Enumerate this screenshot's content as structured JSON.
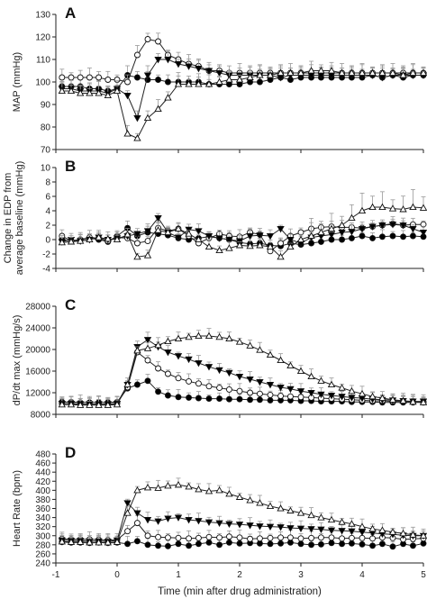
{
  "figure": {
    "x_axis_label": "Time (min after drug administration)",
    "x_ticks": [
      "-1",
      "0",
      "1",
      "2",
      "3",
      "4",
      "5"
    ]
  },
  "series_styles": {
    "filled_circle": {
      "marker": "circle",
      "fill": "#000000"
    },
    "open_circle": {
      "marker": "circle",
      "fill": "#ffffff"
    },
    "filled_triangle_down": {
      "marker": "triangle-down",
      "fill": "#000000"
    },
    "open_triangle_up": {
      "marker": "triangle-up",
      "fill": "#ffffff"
    }
  },
  "chart_data": [
    {
      "type": "line",
      "panel_label": "A",
      "ylabel": "MAP (mmHg)",
      "ylim": [
        70,
        130
      ],
      "yticks": [
        "70",
        "80",
        "90",
        "100",
        "110",
        "120",
        "130"
      ],
      "xlim": [
        -1,
        5
      ],
      "x": [
        -0.9,
        -0.75,
        -0.6,
        -0.45,
        -0.3,
        -0.15,
        0,
        0.17,
        0.33,
        0.5,
        0.67,
        0.83,
        1,
        1.17,
        1.33,
        1.5,
        1.67,
        1.83,
        2,
        2.17,
        2.33,
        2.5,
        2.67,
        2.83,
        3,
        3.17,
        3.33,
        3.5,
        3.67,
        3.83,
        4,
        4.17,
        4.33,
        4.5,
        4.67,
        4.83,
        5
      ],
      "series": [
        {
          "style": "filled_circle",
          "values": [
            98,
            98,
            98,
            97,
            97,
            96,
            97,
            103,
            102,
            101,
            101,
            100,
            100,
            100,
            100,
            99,
            99,
            99,
            99,
            100,
            100,
            101,
            102,
            101,
            102,
            102,
            102,
            102,
            102,
            102,
            102,
            103,
            102,
            103,
            102,
            103,
            103
          ]
        },
        {
          "style": "open_circle",
          "values": [
            102,
            102,
            102,
            102,
            102,
            101,
            101,
            100,
            112,
            119,
            118,
            112,
            110,
            108,
            107,
            105,
            105,
            104,
            104,
            104,
            104,
            104,
            104,
            104,
            104,
            104,
            104,
            104,
            104,
            104,
            104,
            104,
            104,
            104,
            104,
            104,
            104
          ]
        },
        {
          "style": "filled_triangle_down",
          "values": [
            97,
            97,
            96,
            96,
            96,
            95,
            97,
            94,
            84,
            103,
            110,
            110,
            108,
            107,
            106,
            105,
            104,
            103,
            103,
            103,
            103,
            103,
            102,
            103,
            103,
            103,
            103,
            103,
            103,
            103,
            103,
            103,
            102,
            103,
            103,
            103,
            103
          ]
        },
        {
          "style": "open_triangle_up",
          "values": [
            96,
            96,
            95,
            95,
            95,
            94,
            96,
            77,
            75,
            84,
            88,
            93,
            99,
            99,
            99,
            99,
            100,
            101,
            101,
            102,
            103,
            103,
            104,
            104,
            104,
            105,
            105,
            105,
            104,
            104,
            104,
            104,
            104,
            104,
            103,
            104,
            104
          ]
        }
      ]
    },
    {
      "type": "line",
      "panel_label": "B",
      "ylabel": "Change in EDP from average baseline (mmHg)",
      "ylim": [
        -4,
        10
      ],
      "yticks": [
        "-4",
        "-2",
        "0",
        "2",
        "4",
        "6",
        "8",
        "10"
      ],
      "xlim": [
        -1,
        5
      ],
      "x": [
        -0.9,
        -0.75,
        -0.6,
        -0.45,
        -0.3,
        -0.15,
        0,
        0.17,
        0.33,
        0.5,
        0.67,
        0.83,
        1,
        1.17,
        1.33,
        1.5,
        1.67,
        1.83,
        2,
        2.17,
        2.33,
        2.5,
        2.67,
        2.83,
        3,
        3.17,
        3.33,
        3.5,
        3.67,
        3.83,
        4,
        4.17,
        4.33,
        4.5,
        4.67,
        4.83,
        5
      ],
      "series": [
        {
          "style": "filled_circle",
          "values": [
            0,
            -0.2,
            0,
            0.2,
            0,
            -0.3,
            0.5,
            1.6,
            0.5,
            1.0,
            0.8,
            0.6,
            0.2,
            0,
            0.2,
            0.4,
            0.2,
            0,
            -0.4,
            -0.6,
            -0.5,
            -0.8,
            -0.9,
            -0.5,
            -0.7,
            -0.5,
            -0.3,
            0,
            0,
            0.2,
            0.5,
            0.2,
            0.4,
            0.5,
            0.4,
            0.5,
            0.4
          ]
        },
        {
          "style": "open_circle",
          "values": [
            0.5,
            -0.2,
            0,
            0.3,
            0.2,
            -0.2,
            0.3,
            0.2,
            -0.5,
            -0.2,
            1.6,
            1.2,
            1.5,
            0.5,
            -0.5,
            0.2,
            0.8,
            0.5,
            0.4,
            1.0,
            0.7,
            -1.6,
            -0.5,
            0.5,
            1.0,
            1.5,
            1.7,
            1.8,
            1.7,
            1.7,
            1.6,
            1.8,
            2.0,
            2.2,
            2.0,
            2.1,
            2.1
          ]
        },
        {
          "style": "filled_triangle_down",
          "values": [
            -0.3,
            0,
            -0.2,
            0,
            0.3,
            0,
            0.2,
            0.5,
            0.8,
            1.2,
            3.0,
            1.0,
            0.3,
            1.4,
            1.2,
            0.5,
            0.2,
            0,
            -0.2,
            0.5,
            0.6,
            0.5,
            1.5,
            0,
            -0.5,
            0.3,
            0.5,
            0.7,
            1.0,
            1.1,
            1.5,
            1.8,
            2.0,
            2.1,
            2.0,
            1.5,
            1.0
          ]
        },
        {
          "style": "open_triangle_up",
          "values": [
            -0.4,
            -0.3,
            -0.2,
            0,
            0.3,
            0.1,
            0,
            0.7,
            -2.4,
            -2.2,
            1.3,
            1.0,
            1.5,
            0.8,
            0,
            -1.0,
            -1.5,
            -1.2,
            -0.8,
            -0.9,
            -0.8,
            -1.0,
            -2.4,
            -1.0,
            0,
            0.5,
            1.0,
            1.5,
            2.0,
            3.0,
            4.0,
            4.5,
            4.5,
            4.3,
            4.2,
            4.5,
            4.4
          ]
        }
      ]
    },
    {
      "type": "line",
      "panel_label": "C",
      "ylabel": "dP/dt max (mmHg/s)",
      "ylim": [
        8000,
        28000
      ],
      "yticks": [
        "8000",
        "12000",
        "16000",
        "20000",
        "24000",
        "28000"
      ],
      "xlim": [
        -1,
        5
      ],
      "x": [
        -0.9,
        -0.75,
        -0.6,
        -0.45,
        -0.3,
        -0.15,
        0,
        0.17,
        0.33,
        0.5,
        0.67,
        0.83,
        1,
        1.17,
        1.33,
        1.5,
        1.67,
        1.83,
        2,
        2.17,
        2.33,
        2.5,
        2.67,
        2.83,
        3,
        3.17,
        3.33,
        3.5,
        3.67,
        3.83,
        4,
        4.17,
        4.33,
        4.5,
        4.67,
        4.83,
        5
      ],
      "series": [
        {
          "style": "filled_circle",
          "values": [
            10300,
            10300,
            10200,
            10200,
            10200,
            10200,
            10300,
            12800,
            13500,
            14200,
            12200,
            11500,
            11200,
            11100,
            11000,
            10900,
            10900,
            10800,
            10800,
            10700,
            10700,
            10600,
            10600,
            10600,
            10500,
            10500,
            10400,
            10400,
            10400,
            10300,
            10300,
            10300,
            10200,
            10200,
            10200,
            10200,
            10200
          ]
        },
        {
          "style": "open_circle",
          "values": [
            10000,
            10000,
            9900,
            9900,
            9900,
            9900,
            10000,
            13000,
            19500,
            18000,
            16500,
            15500,
            14700,
            14100,
            13700,
            13200,
            12900,
            12600,
            12300,
            12000,
            11800,
            11600,
            11400,
            11300,
            11200,
            11100,
            11000,
            10900,
            10800,
            10700,
            10600,
            10500,
            10500,
            10400,
            10400,
            10300,
            10300
          ]
        },
        {
          "style": "filled_triangle_down",
          "values": [
            10000,
            10000,
            9900,
            9900,
            9900,
            9900,
            10000,
            13500,
            20500,
            21800,
            20500,
            19500,
            18800,
            18200,
            17500,
            16800,
            16200,
            15700,
            15000,
            14500,
            14000,
            13500,
            13000,
            12700,
            12300,
            12000,
            11700,
            11500,
            11300,
            11100,
            11000,
            10800,
            10700,
            10600,
            10500,
            10400,
            10400
          ]
        },
        {
          "style": "open_triangle_up",
          "values": [
            9800,
            9800,
            9700,
            9700,
            9700,
            9700,
            9800,
            13500,
            19800,
            20200,
            20800,
            21500,
            22000,
            22300,
            22500,
            22500,
            22300,
            22000,
            21400,
            20700,
            19900,
            19000,
            18000,
            17000,
            16000,
            15000,
            14200,
            13500,
            12900,
            12300,
            11800,
            11300,
            11000,
            10700,
            10500,
            10300,
            10200
          ]
        }
      ]
    },
    {
      "type": "line",
      "panel_label": "D",
      "ylabel": "Heart Rate (bpm)",
      "ylim": [
        240,
        480
      ],
      "yticks": [
        "240",
        "260",
        "280",
        "300",
        "320",
        "340",
        "360",
        "380",
        "400",
        "420",
        "440",
        "460",
        "480"
      ],
      "xlim": [
        -1,
        5
      ],
      "x": [
        -0.9,
        -0.75,
        -0.6,
        -0.45,
        -0.3,
        -0.15,
        0,
        0.17,
        0.33,
        0.5,
        0.67,
        0.83,
        1,
        1.17,
        1.33,
        1.5,
        1.67,
        1.83,
        2,
        2.17,
        2.33,
        2.5,
        2.67,
        2.83,
        3,
        3.17,
        3.33,
        3.5,
        3.67,
        3.83,
        4,
        4.17,
        4.33,
        4.5,
        4.67,
        4.83,
        5
      ],
      "series": [
        {
          "style": "filled_circle",
          "values": [
            286,
            285,
            285,
            284,
            285,
            284,
            285,
            282,
            288,
            280,
            278,
            277,
            282,
            278,
            282,
            285,
            280,
            285,
            283,
            284,
            283,
            282,
            283,
            285,
            282,
            280,
            281,
            284,
            282,
            283,
            281,
            278,
            282,
            276,
            282,
            278,
            283
          ]
        },
        {
          "style": "open_circle",
          "values": [
            293,
            292,
            292,
            292,
            291,
            290,
            291,
            310,
            328,
            300,
            297,
            296,
            295,
            294,
            295,
            297,
            296,
            298,
            296,
            293,
            294,
            295,
            296,
            296,
            294,
            295,
            296,
            296,
            294,
            295,
            295,
            294,
            296,
            295,
            292,
            293,
            294
          ]
        },
        {
          "style": "filled_triangle_down",
          "values": [
            290,
            289,
            289,
            288,
            288,
            287,
            290,
            372,
            350,
            335,
            332,
            338,
            340,
            335,
            333,
            330,
            328,
            326,
            325,
            323,
            321,
            320,
            319,
            317,
            316,
            315,
            314,
            312,
            311,
            310,
            308,
            306,
            304,
            303,
            301,
            300,
            300
          ]
        },
        {
          "style": "open_triangle_up",
          "values": [
            287,
            286,
            286,
            285,
            285,
            285,
            286,
            350,
            400,
            406,
            405,
            410,
            412,
            408,
            402,
            398,
            400,
            392,
            385,
            378,
            372,
            365,
            360,
            355,
            350,
            345,
            340,
            335,
            330,
            326,
            320,
            315,
            312,
            308,
            305,
            302,
            300
          ]
        }
      ]
    }
  ]
}
